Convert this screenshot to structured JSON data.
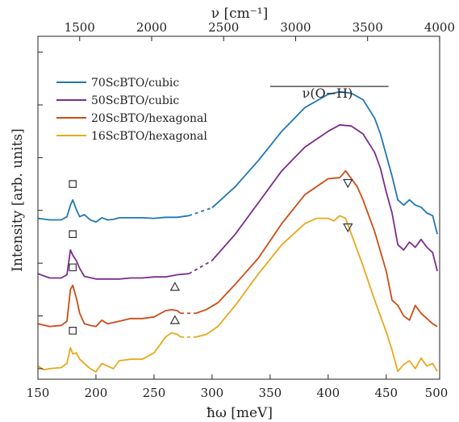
{
  "chart_data": {
    "type": "line",
    "xlabel": "ħω [meV]",
    "ylabel": "Intensity [arb. units]",
    "top_xlabel": "ν [cm⁻¹]",
    "xlim": [
      150,
      496
    ],
    "ylim": [
      -0.2,
      6.3
    ],
    "xticks": [
      150,
      200,
      250,
      300,
      350,
      400,
      450,
      500
    ],
    "top_ticks": [
      1500,
      2000,
      2500,
      3000,
      3500,
      4000
    ],
    "grid": false,
    "legend_position": "top-left",
    "annotation": {
      "text": "ν(O−H)",
      "x_start": 350,
      "x_end": 452
    },
    "colors": {
      "70ScBTO/cubic": "#1f77b4",
      "50ScBTO/cubic": "#7b2d8e",
      "20ScBTO/hexagonal": "#cc4c16",
      "16ScBTO/hexagonal": "#e8a81c"
    },
    "series": [
      {
        "name": "70ScBTO/cubic",
        "gap": [
          280,
          300
        ],
        "x": [
          150,
          160,
          170,
          175,
          178,
          180,
          183,
          186,
          190,
          195,
          200,
          205,
          210,
          215,
          220,
          230,
          240,
          250,
          260,
          270,
          280,
          300,
          320,
          340,
          360,
          380,
          400,
          410,
          420,
          430,
          440,
          445,
          450,
          455,
          460,
          465,
          470,
          475,
          480,
          485,
          490,
          494
        ],
        "y": [
          2.85,
          2.82,
          2.82,
          2.88,
          3.1,
          3.2,
          3.02,
          2.88,
          2.92,
          2.82,
          2.78,
          2.86,
          2.82,
          2.83,
          2.86,
          2.86,
          2.86,
          2.85,
          2.87,
          2.87,
          2.9,
          3.05,
          3.45,
          3.95,
          4.5,
          4.95,
          5.2,
          5.25,
          5.22,
          5.1,
          4.75,
          4.45,
          4.05,
          3.65,
          3.2,
          3.1,
          3.2,
          3.1,
          3.06,
          2.95,
          2.9,
          2.55
        ]
      },
      {
        "name": "50ScBTO/cubic",
        "gap": [
          280,
          300
        ],
        "x": [
          150,
          160,
          170,
          175,
          178,
          180,
          183,
          186,
          190,
          200,
          210,
          220,
          230,
          240,
          250,
          260,
          270,
          280,
          300,
          320,
          340,
          360,
          380,
          400,
          410,
          420,
          430,
          440,
          445,
          450,
          455,
          460,
          465,
          470,
          475,
          480,
          485,
          490,
          494
        ],
        "y": [
          1.8,
          1.72,
          1.72,
          1.78,
          2.25,
          2.15,
          2.05,
          1.9,
          1.75,
          1.7,
          1.7,
          1.7,
          1.72,
          1.72,
          1.74,
          1.74,
          1.78,
          1.8,
          2.05,
          2.55,
          3.15,
          3.75,
          4.2,
          4.5,
          4.62,
          4.6,
          4.45,
          4.1,
          3.8,
          3.35,
          2.95,
          2.35,
          2.25,
          2.4,
          2.3,
          2.45,
          2.3,
          2.2,
          1.85
        ]
      },
      {
        "name": "20ScBTO/hexagonal",
        "gap": [
          273,
          286
        ],
        "x": [
          150,
          160,
          170,
          175,
          178,
          180,
          183,
          186,
          190,
          195,
          200,
          205,
          210,
          220,
          230,
          240,
          250,
          260,
          265,
          270,
          273,
          286,
          295,
          305,
          320,
          340,
          360,
          380,
          400,
          410,
          415,
          420,
          425,
          430,
          440,
          450,
          455,
          460,
          465,
          470,
          475,
          480,
          485,
          490,
          494
        ],
        "y": [
          0.85,
          0.8,
          0.82,
          0.9,
          1.5,
          1.58,
          1.35,
          1.05,
          0.85,
          0.82,
          0.8,
          0.92,
          0.85,
          0.9,
          0.95,
          0.95,
          0.98,
          1.1,
          1.12,
          1.1,
          1.05,
          1.05,
          1.12,
          1.25,
          1.6,
          2.1,
          2.75,
          3.3,
          3.6,
          3.62,
          3.75,
          3.6,
          3.45,
          3.2,
          2.6,
          1.85,
          1.3,
          1.2,
          1.0,
          0.92,
          1.2,
          1.05,
          0.95,
          0.85,
          0.8
        ]
      },
      {
        "name": "16ScBTO/hexagonal",
        "gap": [
          273,
          286
        ],
        "x": [
          150,
          155,
          160,
          170,
          175,
          178,
          180,
          183,
          186,
          190,
          195,
          200,
          205,
          210,
          215,
          220,
          230,
          240,
          250,
          260,
          265,
          270,
          273,
          286,
          295,
          305,
          320,
          340,
          360,
          380,
          390,
          400,
          405,
          410,
          415,
          420,
          425,
          430,
          440,
          450,
          455,
          460,
          465,
          470,
          475,
          480,
          485,
          490,
          494
        ],
        "y": [
          0.05,
          -0.02,
          0.0,
          0.02,
          0.1,
          0.4,
          0.28,
          0.3,
          0.18,
          0.1,
          0.0,
          -0.06,
          0.1,
          0.05,
          0.0,
          0.15,
          0.18,
          0.18,
          0.3,
          0.6,
          0.68,
          0.65,
          0.6,
          0.6,
          0.65,
          0.8,
          1.2,
          1.8,
          2.35,
          2.75,
          2.85,
          2.85,
          2.8,
          2.9,
          2.85,
          2.55,
          2.25,
          1.95,
          1.3,
          0.7,
          0.35,
          -0.05,
          0.08,
          0.15,
          0.0,
          0.2,
          0.05,
          0.1,
          -0.05
        ]
      }
    ],
    "markers": [
      {
        "symbol": "square",
        "x": 180,
        "y": 3.5
      },
      {
        "symbol": "square",
        "x": 180,
        "y": 2.55
      },
      {
        "symbol": "square",
        "x": 180,
        "y": 1.92
      },
      {
        "symbol": "square",
        "x": 180,
        "y": 0.72
      },
      {
        "symbol": "triangle-down",
        "x": 417,
        "y": 3.52
      },
      {
        "symbol": "triangle-down",
        "x": 417,
        "y": 2.68
      },
      {
        "symbol": "triangle-up",
        "x": 268,
        "y": 1.55
      },
      {
        "symbol": "triangle-up",
        "x": 268,
        "y": 0.92
      }
    ]
  }
}
